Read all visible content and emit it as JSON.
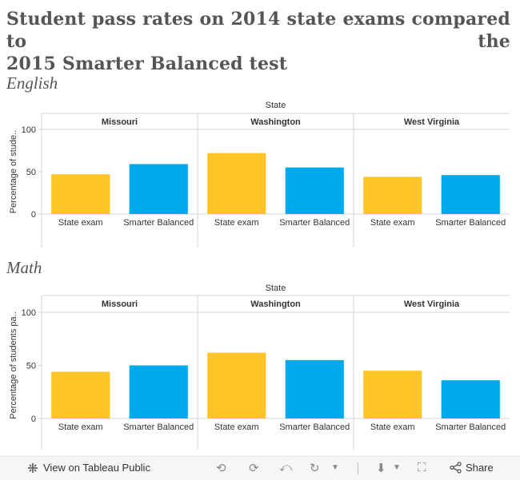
{
  "title_line1": "Student pass rates on 2014 state exams compared to the",
  "title_line2": "2015 Smarter Balanced test",
  "colors": {
    "state_exam": "#FFC425",
    "smarter_balanced": "#00AAEA",
    "grid": "#d4d4d4",
    "axis_text": "#333333"
  },
  "chart_data": [
    {
      "type": "bar",
      "title": "English",
      "column_header": "State",
      "ylabel": "Percentage of stude..",
      "ylim": [
        0,
        100
      ],
      "yticks": [
        0,
        50,
        100
      ],
      "categories": [
        "State exam",
        "Smarter Balanced"
      ],
      "panels": [
        {
          "name": "Missouri",
          "values": [
            47,
            59
          ]
        },
        {
          "name": "Washington",
          "values": [
            72,
            55
          ]
        },
        {
          "name": "West Virginia",
          "values": [
            44,
            46
          ]
        }
      ]
    },
    {
      "type": "bar",
      "title": "Math",
      "column_header": "State",
      "ylabel": "Percentage of students pa..",
      "ylim": [
        0,
        100
      ],
      "yticks": [
        0,
        50,
        100
      ],
      "categories": [
        "State exam",
        "Smarter Balanced"
      ],
      "panels": [
        {
          "name": "Missouri",
          "values": [
            44,
            50
          ]
        },
        {
          "name": "Washington",
          "values": [
            62,
            55
          ]
        },
        {
          "name": "West Virginia",
          "values": [
            45,
            36
          ]
        }
      ]
    }
  ],
  "footer": {
    "view_label": "View on Tableau Public",
    "share_label": "Share",
    "icons": [
      "tableau-logo-icon",
      "undo-icon",
      "redo-icon",
      "revert-icon",
      "refresh-icon",
      "download-icon",
      "fullscreen-icon",
      "share-icon"
    ]
  }
}
